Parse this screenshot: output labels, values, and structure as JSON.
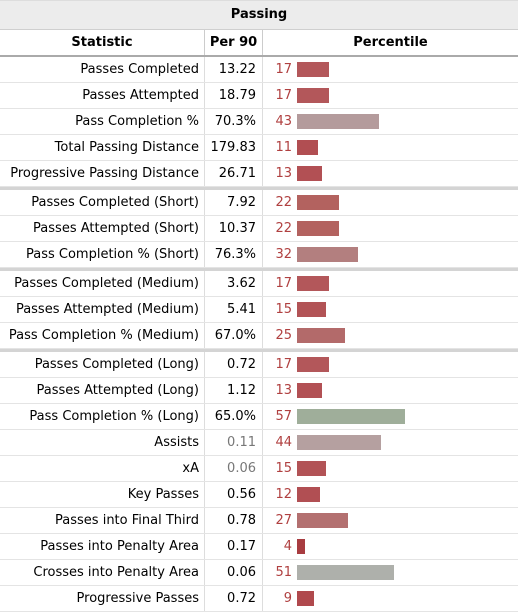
{
  "table": {
    "title": "Passing",
    "headers": {
      "statistic": "Statistic",
      "per90": "Per 90",
      "percentile": "Percentile"
    },
    "bar_max_percentile": 100,
    "rows": [
      {
        "stat": "Passes Completed",
        "per90": "13.22",
        "pct": "17",
        "pct_value": 17,
        "color": "#b3575a"
      },
      {
        "stat": "Passes Attempted",
        "per90": "18.79",
        "pct": "17",
        "pct_value": 17,
        "color": "#b3575a"
      },
      {
        "stat": "Pass Completion %",
        "per90": "70.3%",
        "pct": "43",
        "pct_value": 43,
        "color": "#b49b9c"
      },
      {
        "stat": "Total Passing Distance",
        "per90": "179.83",
        "pct": "11",
        "pct_value": 11,
        "color": "#b14e52"
      },
      {
        "stat": "Progressive Passing Distance",
        "per90": "26.71",
        "pct": "13",
        "pct_value": 13,
        "color": "#b25054"
      },
      {
        "stat": "Passes Completed (Short)",
        "per90": "7.92",
        "pct": "22",
        "pct_value": 22,
        "color": "#b3625f",
        "sep": true
      },
      {
        "stat": "Passes Attempted (Short)",
        "per90": "10.37",
        "pct": "22",
        "pct_value": 22,
        "color": "#b3625f"
      },
      {
        "stat": "Pass Completion % (Short)",
        "per90": "76.3%",
        "pct": "32",
        "pct_value": 32,
        "color": "#b37f7f"
      },
      {
        "stat": "Passes Completed (Medium)",
        "per90": "3.62",
        "pct": "17",
        "pct_value": 17,
        "color": "#b3575a",
        "sep": true
      },
      {
        "stat": "Passes Attempted (Medium)",
        "per90": "5.41",
        "pct": "15",
        "pct_value": 15,
        "color": "#b25356"
      },
      {
        "stat": "Pass Completion % (Medium)",
        "per90": "67.0%",
        "pct": "25",
        "pct_value": 25,
        "color": "#b36a6a"
      },
      {
        "stat": "Passes Completed (Long)",
        "per90": "0.72",
        "pct": "17",
        "pct_value": 17,
        "color": "#b3575a",
        "sep": true
      },
      {
        "stat": "Passes Attempted (Long)",
        "per90": "1.12",
        "pct": "13",
        "pct_value": 13,
        "color": "#b25054"
      },
      {
        "stat": "Pass Completion % (Long)",
        "per90": "65.0%",
        "pct": "57",
        "pct_value": 57,
        "color": "#9fae9a"
      },
      {
        "stat": "Assists",
        "per90": "0.11",
        "pct": "44",
        "pct_value": 44,
        "color": "#b5a0a0",
        "faded": true
      },
      {
        "stat": "xA",
        "per90": "0.06",
        "pct": "15",
        "pct_value": 15,
        "color": "#b25356",
        "faded": true
      },
      {
        "stat": "Key Passes",
        "per90": "0.56",
        "pct": "12",
        "pct_value": 12,
        "color": "#b14f53"
      },
      {
        "stat": "Passes into Final Third",
        "per90": "0.78",
        "pct": "27",
        "pct_value": 27,
        "color": "#b37070"
      },
      {
        "stat": "Passes into Penalty Area",
        "per90": "0.17",
        "pct": "4",
        "pct_value": 4,
        "color": "#a83c40"
      },
      {
        "stat": "Crosses into Penalty Area",
        "per90": "0.06",
        "pct": "51",
        "pct_value": 51,
        "color": "#aeb0ab"
      },
      {
        "stat": "Progressive Passes",
        "per90": "0.72",
        "pct": "9",
        "pct_value": 9,
        "color": "#b0494d"
      }
    ]
  }
}
